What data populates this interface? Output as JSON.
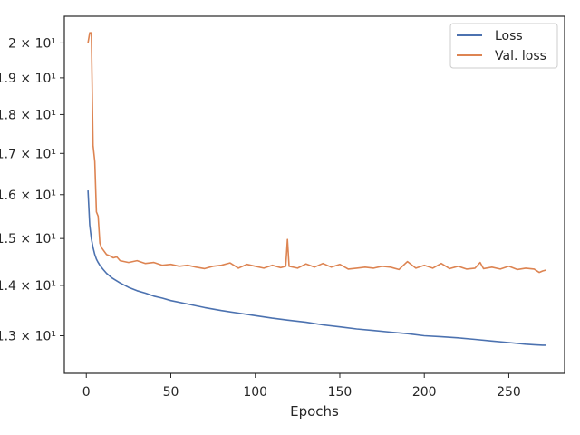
{
  "chart_data": {
    "type": "line",
    "title": "",
    "xlabel": "Epochs",
    "ylabel": "",
    "xlim": [
      -13,
      283
    ],
    "ylim": [
      12.3,
      20.8
    ],
    "y_scale": "log",
    "grid": false,
    "legend_position": "top-right",
    "x_ticks": [
      0,
      50,
      100,
      150,
      200,
      250
    ],
    "x_tick_labels": [
      "0",
      "50",
      "100",
      "150",
      "200",
      "250"
    ],
    "y_ticks": [
      20,
      19,
      18,
      17,
      16,
      15,
      14,
      13
    ],
    "y_tick_labels": [
      "2 × 10¹",
      "1.9 × 10¹",
      "1.8 × 10¹",
      "1.7 × 10¹",
      "1.6 × 10¹",
      "1.5 × 10¹",
      "1.4 × 10¹",
      "1.3 × 10¹"
    ],
    "series": [
      {
        "name": "Loss",
        "color": "#4c72b0",
        "x": [
          1,
          2,
          3,
          4,
          5,
          6,
          7,
          8,
          10,
          12,
          15,
          20,
          25,
          30,
          35,
          40,
          45,
          50,
          60,
          70,
          80,
          90,
          100,
          110,
          120,
          130,
          140,
          150,
          160,
          170,
          180,
          190,
          200,
          210,
          220,
          230,
          240,
          250,
          260,
          265,
          270,
          272
        ],
        "y": [
          16.1,
          15.3,
          15.0,
          14.8,
          14.65,
          14.55,
          14.48,
          14.42,
          14.33,
          14.25,
          14.16,
          14.05,
          13.96,
          13.89,
          13.84,
          13.78,
          13.74,
          13.69,
          13.62,
          13.55,
          13.49,
          13.44,
          13.39,
          13.34,
          13.3,
          13.26,
          13.21,
          13.17,
          13.13,
          13.1,
          13.07,
          13.04,
          13.0,
          12.98,
          12.96,
          12.93,
          12.9,
          12.87,
          12.84,
          12.83,
          12.82,
          12.82
        ]
      },
      {
        "name": "Val. loss",
        "color": "#dd8452",
        "x": [
          1,
          2,
          3,
          4,
          5,
          6,
          7,
          8,
          9,
          10,
          12,
          14,
          16,
          18,
          20,
          25,
          30,
          35,
          40,
          45,
          50,
          55,
          60,
          65,
          70,
          75,
          80,
          85,
          90,
          95,
          100,
          105,
          110,
          115,
          118,
          119,
          120,
          125,
          130,
          135,
          140,
          145,
          150,
          155,
          160,
          165,
          170,
          175,
          180,
          185,
          190,
          195,
          200,
          205,
          210,
          215,
          220,
          225,
          230,
          233,
          235,
          240,
          245,
          250,
          255,
          260,
          265,
          268,
          270,
          272
        ],
        "y": [
          20.0,
          20.3,
          20.3,
          17.2,
          16.8,
          15.6,
          15.5,
          14.9,
          14.8,
          14.75,
          14.65,
          14.62,
          14.58,
          14.6,
          14.52,
          14.48,
          14.52,
          14.46,
          14.48,
          14.42,
          14.44,
          14.4,
          14.42,
          14.38,
          14.35,
          14.4,
          14.42,
          14.47,
          14.36,
          14.44,
          14.4,
          14.36,
          14.42,
          14.37,
          14.4,
          14.98,
          14.4,
          14.36,
          14.45,
          14.38,
          14.46,
          14.38,
          14.44,
          14.34,
          14.36,
          14.38,
          14.36,
          14.4,
          14.38,
          14.33,
          14.5,
          14.36,
          14.42,
          14.36,
          14.46,
          14.35,
          14.4,
          14.34,
          14.36,
          14.48,
          14.35,
          14.38,
          14.34,
          14.4,
          14.33,
          14.36,
          14.34,
          14.27,
          14.3,
          14.32
        ]
      }
    ]
  }
}
